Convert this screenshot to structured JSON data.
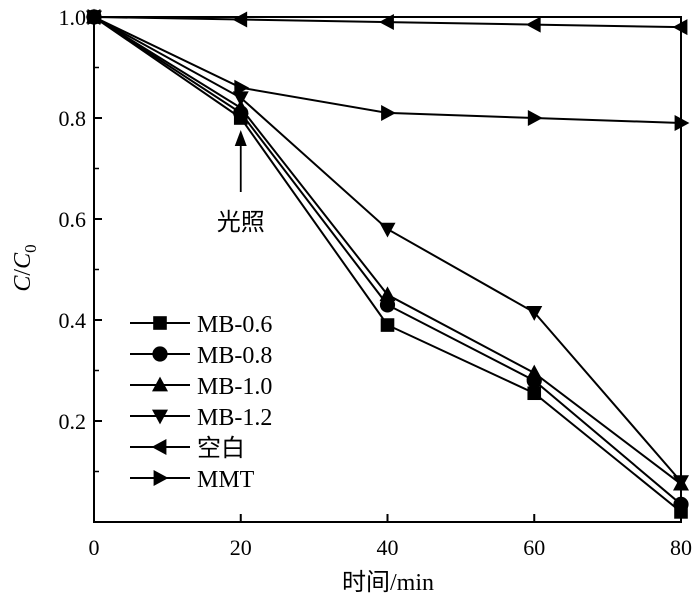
{
  "chart_data": {
    "type": "line",
    "title": "",
    "xlabel": "时间/min",
    "ylabel": {
      "main": "C",
      "slash": "/",
      "sub_main": "C",
      "sub": "0"
    },
    "xlim": [
      0,
      80
    ],
    "ylim": [
      0,
      1.0
    ],
    "xticks": [
      "0",
      "20",
      "40",
      "60",
      "80"
    ],
    "yticks": [
      "0.2",
      "0.4",
      "0.6",
      "0.8",
      "1.0"
    ],
    "grid": false,
    "legend_position": "bottom-left",
    "annotation": {
      "text": "光照",
      "x": 20,
      "y": 0.8
    },
    "series": [
      {
        "name": "MB-0.6",
        "marker": "square",
        "x": [
          0,
          20,
          40,
          60,
          80
        ],
        "y": [
          1.0,
          0.8,
          0.39,
          0.255,
          0.02
        ]
      },
      {
        "name": "MB-0.8",
        "marker": "circle",
        "x": [
          0,
          20,
          40,
          60,
          80
        ],
        "y": [
          1.0,
          0.81,
          0.43,
          0.28,
          0.035
        ]
      },
      {
        "name": "MB-1.0",
        "marker": "triangle-up",
        "x": [
          0,
          20,
          40,
          60,
          80
        ],
        "y": [
          1.0,
          0.82,
          0.45,
          0.295,
          0.075
        ]
      },
      {
        "name": "MB-1.2",
        "marker": "triangle-down",
        "x": [
          0,
          20,
          40,
          60,
          80
        ],
        "y": [
          1.0,
          0.84,
          0.58,
          0.415,
          0.08
        ]
      },
      {
        "name": "空白",
        "marker": "triangle-left",
        "x": [
          0,
          20,
          40,
          60,
          80
        ],
        "y": [
          1.0,
          0.995,
          0.99,
          0.985,
          0.98
        ]
      },
      {
        "name": "MMT",
        "marker": "triangle-right",
        "x": [
          0,
          20,
          40,
          60,
          80
        ],
        "y": [
          1.0,
          0.86,
          0.81,
          0.8,
          0.79
        ]
      }
    ]
  }
}
